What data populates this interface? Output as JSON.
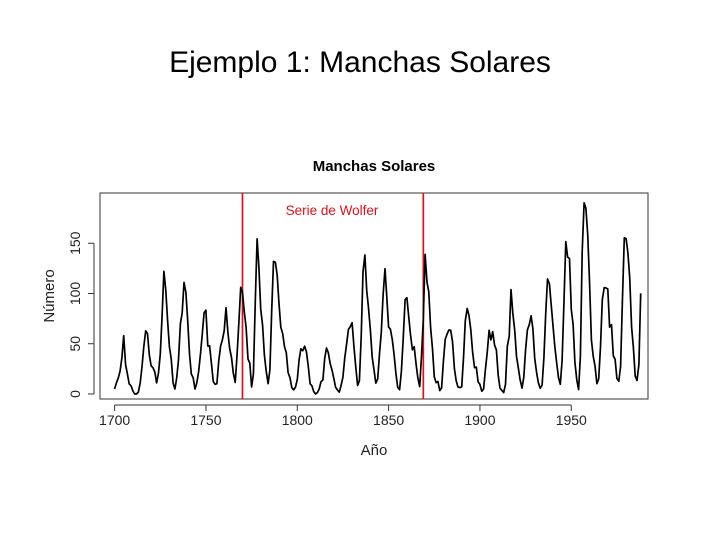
{
  "slide": {
    "title": "Ejemplo 1: Manchas Solares"
  },
  "chart_data": {
    "type": "line",
    "title": "Manchas Solares",
    "xlabel": "Año",
    "ylabel": "Número",
    "xlim": [
      1692,
      1992
    ],
    "ylim": [
      -5,
      200
    ],
    "xticks": [
      1700,
      1750,
      1800,
      1850,
      1900,
      1950
    ],
    "yticks": [
      0,
      50,
      100,
      150
    ],
    "grid": false,
    "line_color": "#000000",
    "highlight_color": "#e0101a",
    "vlines": [
      1770,
      1869
    ],
    "annotations": [
      {
        "text": "Serie de Wolfer",
        "x": 1819,
        "y": 178
      }
    ],
    "series": [
      {
        "x": [
          1700,
          1701,
          1702,
          1703,
          1704,
          1705,
          1706,
          1707,
          1708,
          1709,
          1710,
          1711,
          1712,
          1713,
          1714,
          1715,
          1716,
          1717,
          1718,
          1719,
          1720,
          1721,
          1722,
          1723,
          1724,
          1725,
          1726,
          1727,
          1728,
          1729,
          1730,
          1731,
          1732,
          1733,
          1734,
          1735,
          1736,
          1737,
          1738,
          1739,
          1740,
          1741,
          1742,
          1743,
          1744,
          1745,
          1746,
          1747,
          1748,
          1749,
          1750,
          1751,
          1752,
          1753,
          1754,
          1755,
          1756,
          1757,
          1758,
          1759,
          1760,
          1761,
          1762,
          1763,
          1764,
          1765,
          1766,
          1767,
          1768,
          1769,
          1770,
          1771,
          1772,
          1773,
          1774,
          1775,
          1776,
          1777,
          1778,
          1779,
          1780,
          1781,
          1782,
          1783,
          1784,
          1785,
          1786,
          1787,
          1788,
          1789,
          1790,
          1791,
          1792,
          1793,
          1794,
          1795,
          1796,
          1797,
          1798,
          1799,
          1800,
          1801,
          1802,
          1803,
          1804,
          1805,
          1806,
          1807,
          1808,
          1809,
          1810,
          1811,
          1812,
          1813,
          1814,
          1815,
          1816,
          1817,
          1818,
          1819,
          1820,
          1821,
          1822,
          1823,
          1824,
          1825,
          1826,
          1827,
          1828,
          1829,
          1830,
          1831,
          1832,
          1833,
          1834,
          1835,
          1836,
          1837,
          1838,
          1839,
          1840,
          1841,
          1842,
          1843,
          1844,
          1845,
          1846,
          1847,
          1848,
          1849,
          1850,
          1851,
          1852,
          1853,
          1854,
          1855,
          1856,
          1857,
          1858,
          1859,
          1860,
          1861,
          1862,
          1863,
          1864,
          1865,
          1866,
          1867,
          1868,
          1869,
          1870,
          1871,
          1872,
          1873,
          1874,
          1875,
          1876,
          1877,
          1878,
          1879,
          1880,
          1881,
          1882,
          1883,
          1884,
          1885,
          1886,
          1887,
          1888,
          1889,
          1890,
          1891,
          1892,
          1893,
          1894,
          1895,
          1896,
          1897,
          1898,
          1899,
          1900,
          1901,
          1902,
          1903,
          1904,
          1905,
          1906,
          1907,
          1908,
          1909,
          1910,
          1911,
          1912,
          1913,
          1914,
          1915,
          1916,
          1917,
          1918,
          1919,
          1920,
          1921,
          1922,
          1923,
          1924,
          1925,
          1926,
          1927,
          1928,
          1929,
          1930,
          1931,
          1932,
          1933,
          1934,
          1935,
          1936,
          1937,
          1938,
          1939,
          1940,
          1941,
          1942,
          1943,
          1944,
          1945,
          1946,
          1947,
          1948,
          1949,
          1950,
          1951,
          1952,
          1953,
          1954,
          1955,
          1956,
          1957,
          1958,
          1959,
          1960,
          1961,
          1962,
          1963,
          1964,
          1965,
          1966,
          1967,
          1968,
          1969,
          1970,
          1971,
          1972,
          1973,
          1974,
          1975,
          1976,
          1977,
          1978,
          1979,
          1980,
          1981,
          1982,
          1983,
          1984,
          1985,
          1986,
          1987,
          1988
        ],
        "values": [
          5,
          11,
          16,
          23,
          36,
          58,
          29,
          20,
          10,
          8,
          3,
          0,
          0,
          2,
          11,
          27,
          47,
          63,
          60,
          39,
          28,
          26,
          22,
          11,
          21,
          40,
          78,
          122,
          103,
          73,
          47,
          35,
          11,
          5,
          16,
          34,
          70,
          81,
          111,
          101,
          73,
          40,
          20,
          16,
          5,
          11,
          22,
          40,
          60,
          80.9,
          83.4,
          47.7,
          47.8,
          30.7,
          12.2,
          9.6,
          10.2,
          32.4,
          47.6,
          54,
          62.9,
          85.9,
          61.2,
          45.1,
          36.4,
          20.9,
          11.4,
          37.8,
          69.8,
          106.1,
          100.8,
          81.6,
          66.5,
          34.8,
          30.6,
          7,
          19.8,
          92.5,
          154.4,
          125.9,
          84.8,
          68.1,
          38.5,
          22.8,
          10.2,
          24.1,
          82.9,
          132,
          130.9,
          118.1,
          89.9,
          66.6,
          60,
          46.9,
          41,
          21.3,
          16,
          6.4,
          4.1,
          6.8,
          14.5,
          34,
          45,
          43.1,
          47.5,
          42.2,
          28.1,
          10.1,
          8.1,
          2.5,
          0,
          1.4,
          5,
          12.2,
          13.9,
          35.4,
          45.8,
          41.1,
          30.1,
          23.9,
          15.6,
          6.6,
          4,
          1.8,
          8.5,
          16.6,
          36.3,
          49.6,
          64.2,
          67,
          70.9,
          47.8,
          27.5,
          8.5,
          13.2,
          56.9,
          121.5,
          138.3,
          103.2,
          85.7,
          64.6,
          36.7,
          24.2,
          10.7,
          15,
          40.1,
          61.5,
          98.5,
          124.7,
          96.3,
          66.6,
          64.5,
          54.1,
          39,
          20.6,
          6.7,
          4.3,
          22.7,
          54.8,
          93.8,
          95.8,
          77.2,
          59.1,
          44,
          47,
          30.5,
          16.3,
          7.3,
          37.6,
          74,
          139,
          111.2,
          101.6,
          66.2,
          44.7,
          17,
          11.3,
          12.4,
          3.4,
          6,
          32.3,
          54.3,
          59.7,
          63.7,
          63.5,
          52.2,
          25.4,
          13.1,
          6.8,
          6.3,
          7.1,
          35.6,
          73,
          85.1,
          78,
          64,
          41.8,
          26.2,
          26.7,
          12.1,
          9.5,
          2.7,
          5,
          24.4,
          42,
          63.5,
          53.8,
          62,
          48.5,
          43.9,
          18.6,
          5.7,
          3.6,
          1.4,
          9.6,
          47.4,
          57.1,
          103.9,
          80.6,
          63.6,
          37.6,
          26.1,
          14.2,
          5.8,
          16.7,
          44.3,
          63.9,
          69,
          77.8,
          64.9,
          35.7,
          21.2,
          11.1,
          5.7,
          8.7,
          36.1,
          79.7,
          114.4,
          109.6,
          88.8,
          67.8,
          47.5,
          30.6,
          16.3,
          9.6,
          33.2,
          92.6,
          151.6,
          136.3,
          134.7,
          83.9,
          69.4,
          31.5,
          13.9,
          4.4,
          38,
          141.7,
          190.2,
          184.8,
          159,
          112.3,
          53.9,
          37.6,
          27.9,
          10.2,
          15.1,
          47,
          93.8,
          105.9,
          105.5,
          104.5,
          66.6,
          68.9,
          38,
          34.5,
          15.5,
          12.6,
          27.5,
          92.5,
          155.4,
          154.7,
          140.5,
          115.9,
          66.6,
          45.9,
          17.9,
          13.4,
          29.2,
          100.2
        ]
      }
    ]
  }
}
